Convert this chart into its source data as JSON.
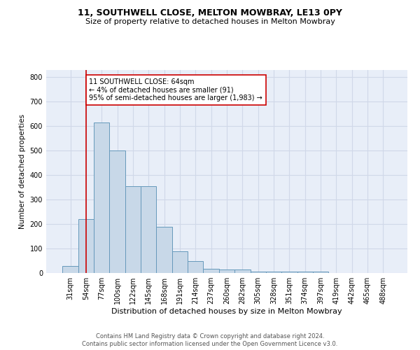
{
  "title": "11, SOUTHWELL CLOSE, MELTON MOWBRAY, LE13 0PY",
  "subtitle": "Size of property relative to detached houses in Melton Mowbray",
  "xlabel": "Distribution of detached houses by size in Melton Mowbray",
  "ylabel": "Number of detached properties",
  "bar_color": "#c8d8e8",
  "bar_edge_color": "#6699bb",
  "vline_color": "#cc0000",
  "vline_x": 1,
  "annotation_text": "11 SOUTHWELL CLOSE: 64sqm\n← 4% of detached houses are smaller (91)\n95% of semi-detached houses are larger (1,983) →",
  "annotation_box_color": "#ffffff",
  "annotation_box_edge": "#cc0000",
  "categories": [
    "31sqm",
    "54sqm",
    "77sqm",
    "100sqm",
    "122sqm",
    "145sqm",
    "168sqm",
    "191sqm",
    "214sqm",
    "237sqm",
    "260sqm",
    "282sqm",
    "305sqm",
    "328sqm",
    "351sqm",
    "374sqm",
    "397sqm",
    "419sqm",
    "442sqm",
    "465sqm",
    "488sqm"
  ],
  "values": [
    30,
    220,
    615,
    500,
    355,
    355,
    190,
    90,
    50,
    18,
    13,
    13,
    7,
    5,
    5,
    5,
    7,
    0,
    0,
    0,
    0
  ],
  "ylim": [
    0,
    830
  ],
  "yticks": [
    0,
    100,
    200,
    300,
    400,
    500,
    600,
    700,
    800
  ],
  "footer1": "Contains HM Land Registry data © Crown copyright and database right 2024.",
  "footer2": "Contains public sector information licensed under the Open Government Licence v3.0.",
  "grid_color": "#d0d8e8",
  "background_color": "#e8eef8",
  "title_fontsize": 9,
  "subtitle_fontsize": 8,
  "xlabel_fontsize": 8,
  "ylabel_fontsize": 7.5,
  "tick_fontsize": 7,
  "footer_fontsize": 6,
  "annotation_fontsize": 7
}
